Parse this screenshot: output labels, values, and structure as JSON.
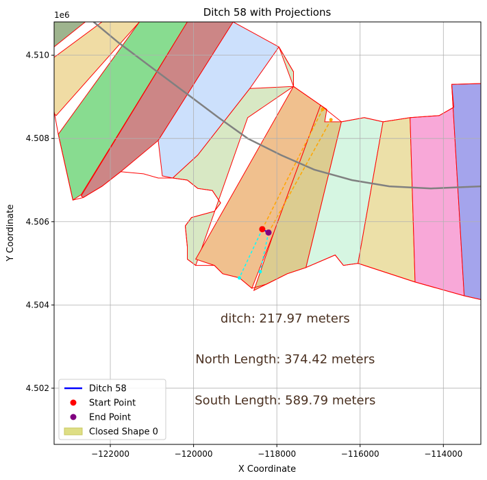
{
  "chart_data": {
    "type": "map-plot",
    "title": "Ditch 58 with Projections",
    "xlabel": "X Coordinate",
    "ylabel": "Y Coordinate",
    "y_offset_label": "1e6",
    "xlim": [
      -123350,
      -113100
    ],
    "ylim": [
      4500650,
      4510800
    ],
    "grid": true,
    "x_ticks": [
      {
        "value": -122000,
        "label": "−122000"
      },
      {
        "value": -120000,
        "label": "−120000"
      },
      {
        "value": -118000,
        "label": "−118000"
      },
      {
        "value": -116000,
        "label": "−116000"
      },
      {
        "value": -114000,
        "label": "−114000"
      }
    ],
    "y_ticks": [
      {
        "value": 4502000,
        "label": "4.502"
      },
      {
        "value": 4504000,
        "label": "4.504"
      },
      {
        "value": 4506000,
        "label": "4.506"
      },
      {
        "value": 4508000,
        "label": "4.508"
      },
      {
        "value": 4510000,
        "label": "4.510"
      }
    ],
    "parcels": [
      {
        "color": "#f0dca4",
        "points": [
          [
            -123350,
            4509950
          ],
          [
            -122200,
            4510800
          ],
          [
            -121300,
            4510800
          ],
          [
            -123300,
            4508550
          ],
          [
            -123350,
            4508600
          ]
        ]
      },
      {
        "color": "#9eb48e",
        "points": [
          [
            -123350,
            4510200
          ],
          [
            -123350,
            4510800
          ],
          [
            -122600,
            4510800
          ]
        ]
      },
      {
        "color": "#88dc90",
        "points": [
          [
            -123250,
            4508100
          ],
          [
            -121300,
            4510800
          ],
          [
            -120150,
            4510800
          ],
          [
            -122700,
            4506650
          ],
          [
            -122900,
            4506520
          ]
        ]
      },
      {
        "color": "#cc8686",
        "points": [
          [
            -122700,
            4506620
          ],
          [
            -120150,
            4510800
          ],
          [
            -119050,
            4510800
          ],
          [
            -120850,
            4507950
          ],
          [
            -121750,
            4507200
          ],
          [
            -122200,
            4506850
          ],
          [
            -122650,
            4506580
          ]
        ]
      },
      {
        "color": "#cce0fc",
        "points": [
          [
            -120850,
            4507950
          ],
          [
            -119050,
            4510800
          ],
          [
            -117950,
            4510200
          ],
          [
            -118650,
            4509200
          ],
          [
            -119900,
            4507600
          ],
          [
            -120500,
            4507050
          ],
          [
            -120750,
            4507100
          ]
        ]
      },
      {
        "color": "#d8e8c4",
        "points": [
          [
            -117950,
            4510200
          ],
          [
            -117600,
            4509600
          ],
          [
            -117600,
            4509250
          ],
          [
            -118650,
            4509200
          ],
          [
            -119900,
            4507600
          ],
          [
            -120500,
            4507050
          ],
          [
            -120150,
            4507000
          ],
          [
            -119900,
            4506800
          ],
          [
            -119550,
            4506750
          ],
          [
            -119350,
            4506450
          ],
          [
            -119500,
            4506250
          ],
          [
            -120050,
            4506100
          ],
          [
            -120200,
            4505900
          ],
          [
            -120150,
            4505400
          ],
          [
            -120150,
            4505100
          ],
          [
            -119950,
            4504950
          ],
          [
            -118700,
            4508500
          ],
          [
            -117600,
            4509250
          ]
        ]
      },
      {
        "color": "#f0c08e",
        "points": [
          [
            -117600,
            4509250
          ],
          [
            -116950,
            4508800
          ],
          [
            -118050,
            4505800
          ],
          [
            -118600,
            4504400
          ],
          [
            -118900,
            4504650
          ],
          [
            -119300,
            4504750
          ],
          [
            -119500,
            4504950
          ],
          [
            -119950,
            4505100
          ]
        ]
      },
      {
        "color": "#dccc90",
        "points": [
          [
            -116950,
            4508800
          ],
          [
            -116800,
            4508700
          ],
          [
            -116850,
            4508400
          ],
          [
            -116450,
            4508400
          ],
          [
            -117300,
            4504900
          ],
          [
            -117750,
            4504750
          ],
          [
            -118250,
            4504500
          ],
          [
            -118550,
            4504350
          ],
          [
            -118050,
            4505800
          ]
        ]
      },
      {
        "color": "#d6f6e2",
        "points": [
          [
            -116450,
            4508400
          ],
          [
            -115900,
            4508500
          ],
          [
            -115450,
            4508400
          ],
          [
            -116050,
            4505000
          ],
          [
            -116400,
            4504950
          ],
          [
            -116600,
            4505200
          ],
          [
            -117300,
            4504900
          ]
        ]
      },
      {
        "color": "#ece0a8",
        "points": [
          [
            -115450,
            4508400
          ],
          [
            -114800,
            4508500
          ],
          [
            -114680,
            4504550
          ],
          [
            -116050,
            4505000
          ]
        ]
      },
      {
        "color": "#f8a8d8",
        "points": [
          [
            -114800,
            4508500
          ],
          [
            -114100,
            4508550
          ],
          [
            -113750,
            4508750
          ],
          [
            -113800,
            4509300
          ],
          [
            -113500,
            4504220
          ],
          [
            -114680,
            4504550
          ]
        ]
      },
      {
        "color": "#a4a4ec",
        "points": [
          [
            -113800,
            4509300
          ],
          [
            -113100,
            4509320
          ],
          [
            -113100,
            4504130
          ],
          [
            -113500,
            4504220
          ]
        ]
      }
    ],
    "boundary": [
      [
        -123350,
        4508650
      ],
      [
        -123250,
        4508100
      ],
      [
        -122900,
        4506520
      ],
      [
        -122650,
        4506580
      ],
      [
        -122200,
        4506850
      ],
      [
        -121750,
        4507200
      ],
      [
        -121200,
        4507150
      ],
      [
        -120850,
        4507050
      ],
      [
        -120500,
        4507050
      ],
      [
        -120150,
        4507000
      ],
      [
        -119900,
        4506800
      ],
      [
        -119550,
        4506750
      ],
      [
        -119350,
        4506450
      ],
      [
        -119500,
        4506250
      ],
      [
        -120050,
        4506100
      ],
      [
        -120200,
        4505900
      ],
      [
        -120150,
        4505400
      ],
      [
        -120150,
        4505100
      ],
      [
        -119950,
        4504950
      ],
      [
        -119500,
        4504950
      ],
      [
        -119300,
        4504750
      ],
      [
        -118900,
        4504650
      ],
      [
        -118600,
        4504400
      ],
      [
        -118250,
        4504500
      ],
      [
        -117750,
        4504750
      ],
      [
        -117300,
        4504900
      ],
      [
        -116600,
        4505200
      ],
      [
        -116400,
        4504950
      ],
      [
        -116050,
        4505000
      ],
      [
        -114680,
        4504550
      ],
      [
        -113500,
        4504220
      ],
      [
        -113100,
        4504130
      ]
    ],
    "boundary_top": [
      [
        -117950,
        4510200
      ],
      [
        -117600,
        4509600
      ],
      [
        -117600,
        4509250
      ],
      [
        -116950,
        4508800
      ],
      [
        -116450,
        4508400
      ],
      [
        -115900,
        4508500
      ],
      [
        -115450,
        4508400
      ],
      [
        -114800,
        4508500
      ],
      [
        -114100,
        4508550
      ],
      [
        -113750,
        4508750
      ],
      [
        -113800,
        4509300
      ],
      [
        -113100,
        4509320
      ]
    ],
    "main_ditch_line": [
      [
        -122400,
        4510800
      ],
      [
        -121800,
        4510300
      ],
      [
        -121000,
        4509700
      ],
      [
        -120200,
        4509100
      ],
      [
        -119400,
        4508500
      ],
      [
        -118700,
        4508000
      ],
      [
        -117900,
        4507600
      ],
      [
        -117100,
        4507250
      ],
      [
        -116200,
        4507000
      ],
      [
        -115300,
        4506850
      ],
      [
        -114300,
        4506800
      ],
      [
        -113100,
        4506850
      ]
    ],
    "ditch_segment": [
      [
        -118350,
        4505820
      ],
      [
        -118200,
        4505740
      ]
    ],
    "start_point": {
      "x": -118350,
      "y": 4505820,
      "label": "Start Point"
    },
    "end_point": {
      "x": -118200,
      "y": 4505740,
      "label": "End Point"
    },
    "north_projections": [
      {
        "from": [
          -118350,
          4505820
        ],
        "to": [
          -116900,
          4508700
        ]
      },
      {
        "from": [
          -118200,
          4505740
        ],
        "to": [
          -116700,
          4508450
        ]
      }
    ],
    "south_projections": [
      {
        "from": [
          -118350,
          4505820
        ],
        "to": [
          -118900,
          4504650
        ]
      },
      {
        "from": [
          -118200,
          4505740
        ],
        "to": [
          -118400,
          4504800
        ]
      }
    ],
    "annotations": [
      {
        "text": "ditch: 217.97 meters",
        "x": -117800,
        "y": 4503680
      },
      {
        "text": "North Length: 374.42 meters",
        "x": -117800,
        "y": 4502700
      },
      {
        "text": "South Length: 589.79 meters",
        "x": -117800,
        "y": 4501710
      }
    ],
    "legend": {
      "position": "lower-left",
      "entries": [
        {
          "label": "Ditch 58",
          "kind": "line",
          "color": "#0000ff"
        },
        {
          "label": "Start Point",
          "kind": "dot",
          "color": "#ff0000"
        },
        {
          "label": "End Point",
          "kind": "dot",
          "color": "#800080"
        },
        {
          "label": "Closed Shape 0",
          "kind": "patch",
          "color": "#d8d870"
        }
      ]
    },
    "colors": {
      "boundary": "#ff0000",
      "main_line": "#808080",
      "north": "#ffa500",
      "south": "#00ffff",
      "ditch": "#0000ff",
      "grid": "#b0b0b0"
    }
  }
}
